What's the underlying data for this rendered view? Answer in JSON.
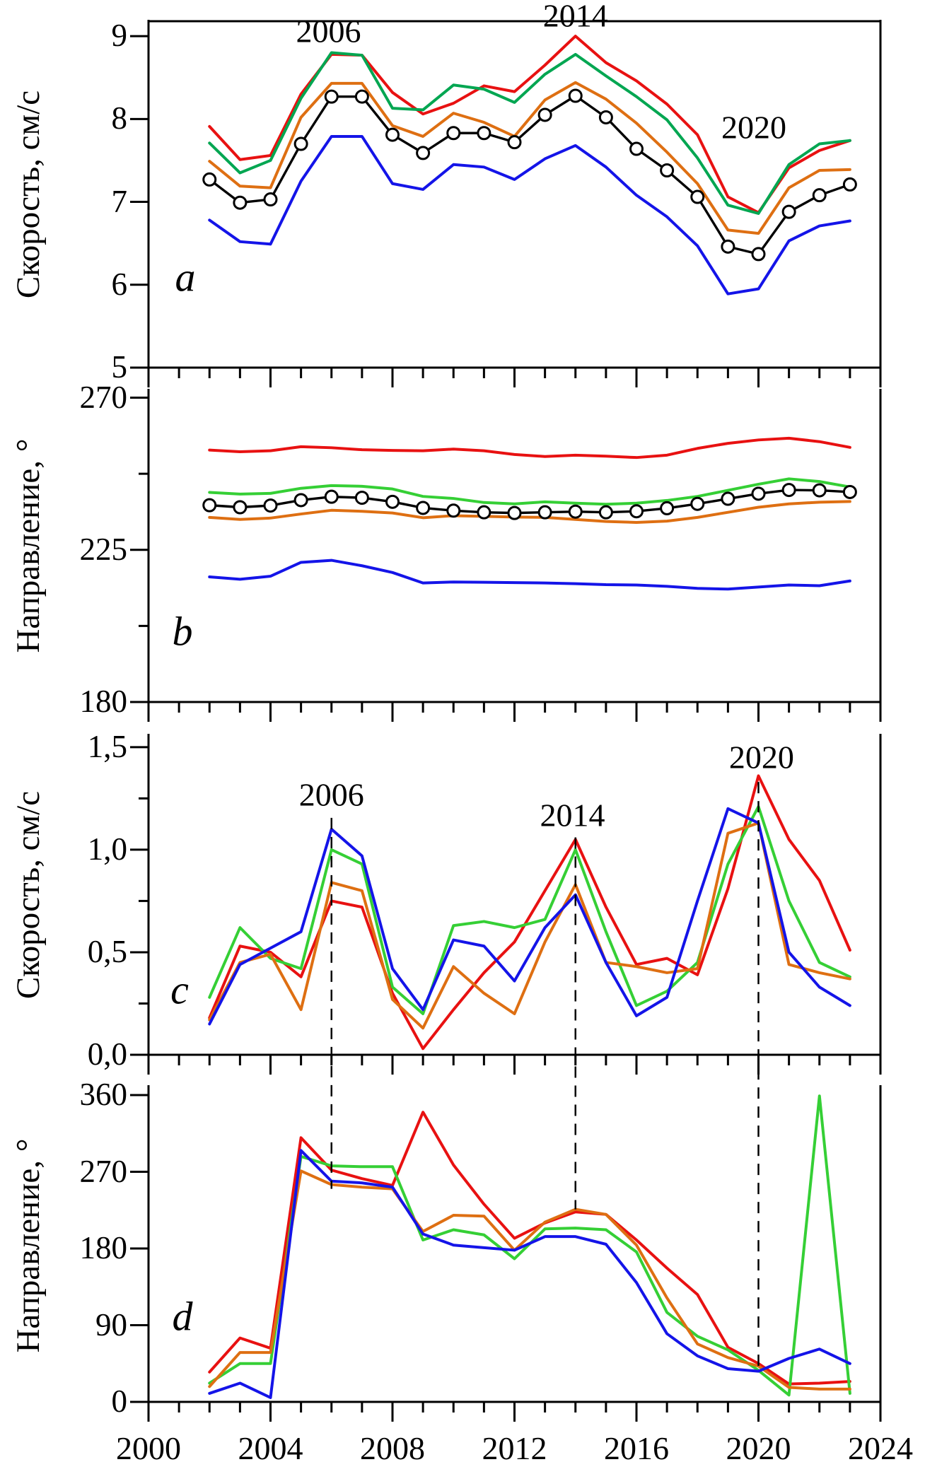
{
  "colors": {
    "red": "#e81111",
    "green_dark": "#00a651",
    "green": "#35cf35",
    "orange": "#de6f12",
    "blue": "#1414e8",
    "black": "#000000"
  },
  "x_axis": {
    "min": 2000,
    "max": 2024,
    "major_ticks": [
      2000,
      2004,
      2008,
      2012,
      2016,
      2020,
      2024
    ],
    "labels": [
      "2000",
      "2004",
      "2008",
      "2012",
      "2016",
      "2020",
      "2024"
    ],
    "minor_step": 1
  },
  "years": [
    2002,
    2003,
    2004,
    2005,
    2006,
    2007,
    2008,
    2009,
    2010,
    2011,
    2012,
    2013,
    2014,
    2015,
    2016,
    2017,
    2018,
    2019,
    2020,
    2021,
    2022,
    2023
  ],
  "chart_data": [
    {
      "id": "a",
      "type": "line",
      "panel_label": "a",
      "ylabel": "Скорость, см/с",
      "ylim": [
        5,
        9
      ],
      "grid": false,
      "yticks": [
        {
          "v": 5,
          "label": "5"
        },
        {
          "v": 6,
          "label": "6"
        },
        {
          "v": 7,
          "label": "7"
        },
        {
          "v": 8,
          "label": "8"
        },
        {
          "v": 9,
          "label": "9"
        }
      ],
      "minor_yticks": [],
      "series": [
        {
          "name": "red",
          "color_key": "red",
          "marker": false,
          "values": [
            7.91,
            7.51,
            7.56,
            8.3,
            8.78,
            8.77,
            8.32,
            8.06,
            8.19,
            8.4,
            8.33,
            8.65,
            9.0,
            8.68,
            8.46,
            8.18,
            7.81,
            7.06,
            6.87,
            7.41,
            7.62,
            7.74
          ]
        },
        {
          "name": "green",
          "color_key": "green_dark",
          "marker": false,
          "values": [
            7.71,
            7.35,
            7.5,
            8.25,
            8.8,
            8.77,
            8.13,
            8.11,
            8.41,
            8.36,
            8.2,
            8.54,
            8.78,
            8.52,
            8.27,
            7.99,
            7.53,
            6.96,
            6.86,
            7.45,
            7.7,
            7.74
          ]
        },
        {
          "name": "orange",
          "color_key": "orange",
          "marker": false,
          "values": [
            7.49,
            7.19,
            7.17,
            8.02,
            8.43,
            8.43,
            7.92,
            7.79,
            8.07,
            7.96,
            7.79,
            8.23,
            8.44,
            8.24,
            7.95,
            7.6,
            7.22,
            6.66,
            6.62,
            7.17,
            7.38,
            7.39
          ]
        },
        {
          "name": "blue",
          "color_key": "blue",
          "marker": false,
          "values": [
            6.78,
            6.52,
            6.49,
            7.25,
            7.79,
            7.79,
            7.22,
            7.15,
            7.45,
            7.42,
            7.27,
            7.52,
            7.68,
            7.42,
            7.08,
            6.82,
            6.47,
            5.89,
            5.95,
            6.53,
            6.71,
            6.77
          ]
        },
        {
          "name": "mean-black",
          "color_key": "black",
          "marker": true,
          "values": [
            7.27,
            6.99,
            7.03,
            7.7,
            8.27,
            8.27,
            7.81,
            7.59,
            7.83,
            7.83,
            7.72,
            8.05,
            8.28,
            8.02,
            7.64,
            7.38,
            7.06,
            6.46,
            6.37,
            6.88,
            7.08,
            7.21
          ]
        }
      ],
      "annotations": [
        {
          "text": "2006",
          "year": 2005.9,
          "value": 9.06
        },
        {
          "text": "2014",
          "year": 2014.0,
          "value": 9.25
        },
        {
          "text": "2020",
          "year": 2019.85,
          "value": 7.9
        }
      ]
    },
    {
      "id": "b",
      "type": "line",
      "panel_label": "b",
      "ylabel": "Направление, °",
      "ylim": [
        180,
        270
      ],
      "grid": false,
      "yticks": [
        {
          "v": 180,
          "label": "180"
        },
        {
          "v": 225,
          "label": "225"
        },
        {
          "v": 270,
          "label": "270"
        }
      ],
      "minor_yticks": [
        202.5,
        247.5
      ],
      "series": [
        {
          "name": "red",
          "color_key": "red",
          "marker": false,
          "values": [
            254.5,
            254.0,
            254.3,
            255.5,
            255.2,
            254.6,
            254.4,
            254.3,
            254.8,
            254.3,
            253.2,
            252.6,
            253.0,
            252.7,
            252.3,
            253.0,
            255.0,
            256.5,
            257.5,
            258.0,
            257.0,
            255.3
          ]
        },
        {
          "name": "green",
          "color_key": "green",
          "marker": false,
          "values": [
            242.0,
            241.5,
            241.7,
            243.2,
            244.0,
            243.8,
            243.0,
            240.8,
            240.2,
            239.0,
            238.6,
            239.2,
            238.8,
            238.5,
            238.8,
            239.6,
            240.8,
            242.6,
            244.4,
            246.0,
            245.2,
            243.6
          ]
        },
        {
          "name": "orange",
          "color_key": "orange",
          "marker": false,
          "values": [
            234.6,
            234.0,
            234.4,
            235.6,
            236.7,
            236.4,
            235.9,
            234.5,
            235.1,
            234.9,
            234.7,
            234.6,
            234.0,
            233.4,
            233.1,
            233.5,
            234.6,
            236.1,
            237.6,
            238.6,
            239.1,
            239.3
          ]
        },
        {
          "name": "blue",
          "color_key": "blue",
          "marker": false,
          "values": [
            217.0,
            216.3,
            217.2,
            221.3,
            221.9,
            220.3,
            218.3,
            215.2,
            215.5,
            215.4,
            215.3,
            215.2,
            215.0,
            214.7,
            214.6,
            214.2,
            213.6,
            213.4,
            214.0,
            214.6,
            214.4,
            215.8
          ]
        },
        {
          "name": "mean-black",
          "color_key": "black",
          "marker": true,
          "values": [
            238.2,
            237.6,
            238.1,
            239.7,
            240.7,
            240.4,
            239.2,
            237.4,
            236.6,
            236.1,
            235.9,
            236.1,
            236.3,
            236.1,
            236.4,
            237.3,
            238.6,
            240.1,
            241.6,
            242.7,
            242.6,
            242.1
          ]
        }
      ],
      "annotations": []
    },
    {
      "id": "c",
      "type": "line",
      "panel_label": "c",
      "ylabel": "Скорость, см/с",
      "ylim": [
        0,
        1.5
      ],
      "grid": false,
      "yticks": [
        {
          "v": 0,
          "label": "0,0"
        },
        {
          "v": 0.5,
          "label": "0,5"
        },
        {
          "v": 1.0,
          "label": "1,0"
        },
        {
          "v": 1.5,
          "label": "1,5"
        }
      ],
      "minor_yticks": [
        0.25,
        0.75,
        1.25
      ],
      "series": [
        {
          "name": "red",
          "color_key": "red",
          "marker": false,
          "values": [
            0.18,
            0.53,
            0.5,
            0.38,
            0.75,
            0.72,
            0.3,
            0.03,
            0.22,
            0.4,
            0.55,
            0.8,
            1.05,
            0.72,
            0.44,
            0.47,
            0.39,
            0.81,
            1.36,
            1.05,
            0.85,
            0.51
          ]
        },
        {
          "name": "green",
          "color_key": "green",
          "marker": false,
          "values": [
            0.28,
            0.62,
            0.47,
            0.42,
            1.0,
            0.93,
            0.33,
            0.2,
            0.63,
            0.65,
            0.62,
            0.66,
            1.0,
            0.6,
            0.24,
            0.31,
            0.45,
            0.93,
            1.21,
            0.75,
            0.45,
            0.38
          ]
        },
        {
          "name": "orange",
          "color_key": "orange",
          "marker": false,
          "values": [
            0.17,
            0.45,
            0.49,
            0.22,
            0.84,
            0.8,
            0.27,
            0.13,
            0.43,
            0.3,
            0.2,
            0.55,
            0.83,
            0.45,
            0.43,
            0.4,
            0.42,
            1.08,
            1.13,
            0.44,
            0.4,
            0.37
          ]
        },
        {
          "name": "blue",
          "color_key": "blue",
          "marker": false,
          "values": [
            0.15,
            0.44,
            0.52,
            0.6,
            1.1,
            0.97,
            0.42,
            0.22,
            0.56,
            0.53,
            0.36,
            0.62,
            0.78,
            0.45,
            0.19,
            0.28,
            0.75,
            1.2,
            1.13,
            0.5,
            0.33,
            0.24
          ]
        }
      ],
      "annotations": [
        {
          "text": "2006",
          "year": 2006.0,
          "value": 1.27
        },
        {
          "text": "2014",
          "year": 2013.9,
          "value": 1.17
        },
        {
          "text": "2020",
          "year": 2020.1,
          "value": 1.45
        }
      ]
    },
    {
      "id": "d",
      "type": "line",
      "panel_label": "d",
      "ylabel": "Направление, °",
      "ylim": [
        0,
        360
      ],
      "grid": false,
      "yticks": [
        {
          "v": 0,
          "label": "0"
        },
        {
          "v": 90,
          "label": "90"
        },
        {
          "v": 180,
          "label": "180"
        },
        {
          "v": 270,
          "label": "270"
        },
        {
          "v": 360,
          "label": "360"
        }
      ],
      "minor_yticks": [],
      "series": [
        {
          "name": "red",
          "color_key": "red",
          "marker": false,
          "values": [
            35,
            75,
            63,
            310,
            272,
            262,
            254,
            340,
            278,
            232,
            192,
            210,
            223,
            220,
            190,
            157,
            126,
            64,
            45,
            21,
            22,
            24
          ]
        },
        {
          "name": "green",
          "color_key": "green",
          "marker": false,
          "values": [
            22,
            45,
            45,
            288,
            277,
            276,
            276,
            190,
            202,
            196,
            168,
            203,
            204,
            202,
            176,
            105,
            77,
            61,
            37,
            8,
            359,
            10
          ]
        },
        {
          "name": "orange",
          "color_key": "orange",
          "marker": false,
          "values": [
            18,
            58,
            58,
            271,
            255,
            252,
            250,
            200,
            219,
            218,
            178,
            211,
            226,
            220,
            184,
            122,
            68,
            52,
            42,
            17,
            15,
            15
          ]
        },
        {
          "name": "blue",
          "color_key": "blue",
          "marker": false,
          "values": [
            10,
            22,
            5,
            295,
            259,
            257,
            252,
            197,
            184,
            181,
            178,
            194,
            194,
            185,
            140,
            80,
            54,
            39,
            36,
            51,
            62,
            45
          ]
        }
      ],
      "annotations": []
    }
  ],
  "dashed_guides": [
    {
      "year": 2006,
      "from_value_c": 1.155,
      "to_value_d": 250
    },
    {
      "year": 2014,
      "from_value_c": 1.06,
      "to_value_d": 226
    },
    {
      "year": 2020,
      "from_value_c": 1.33,
      "to_value_d": 42
    }
  ]
}
